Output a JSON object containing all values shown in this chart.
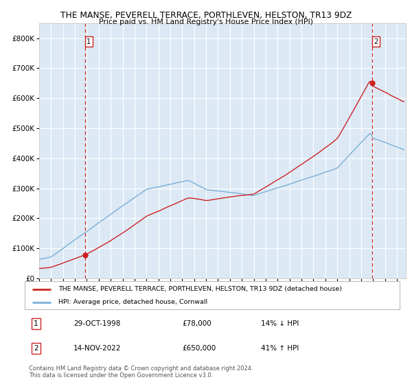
{
  "title": "THE MANSE, PEVERELL TERRACE, PORTHLEVEN, HELSTON, TR13 9DZ",
  "subtitle": "Price paid vs. HM Land Registry's House Price Index (HPI)",
  "sale1_date": "29-OCT-1998",
  "sale1_price": 78000,
  "sale1_hpi": "14% ↓ HPI",
  "sale2_date": "14-NOV-2022",
  "sale2_price": 650000,
  "sale2_hpi": "41% ↑ HPI",
  "legend_red": "THE MANSE, PEVERELL TERRACE, PORTHLEVEN, HELSTON, TR13 9DZ (detached house)",
  "legend_blue": "HPI: Average price, detached house, Cornwall",
  "footer": "Contains HM Land Registry data © Crown copyright and database right 2024.\nThis data is licensed under the Open Government Licence v3.0.",
  "bg_color": "#dce9f5",
  "ylim": [
    0,
    850000
  ],
  "yticks": [
    0,
    100000,
    200000,
    300000,
    400000,
    500000,
    600000,
    700000,
    800000
  ],
  "year_start": 1995,
  "year_end": 2026
}
